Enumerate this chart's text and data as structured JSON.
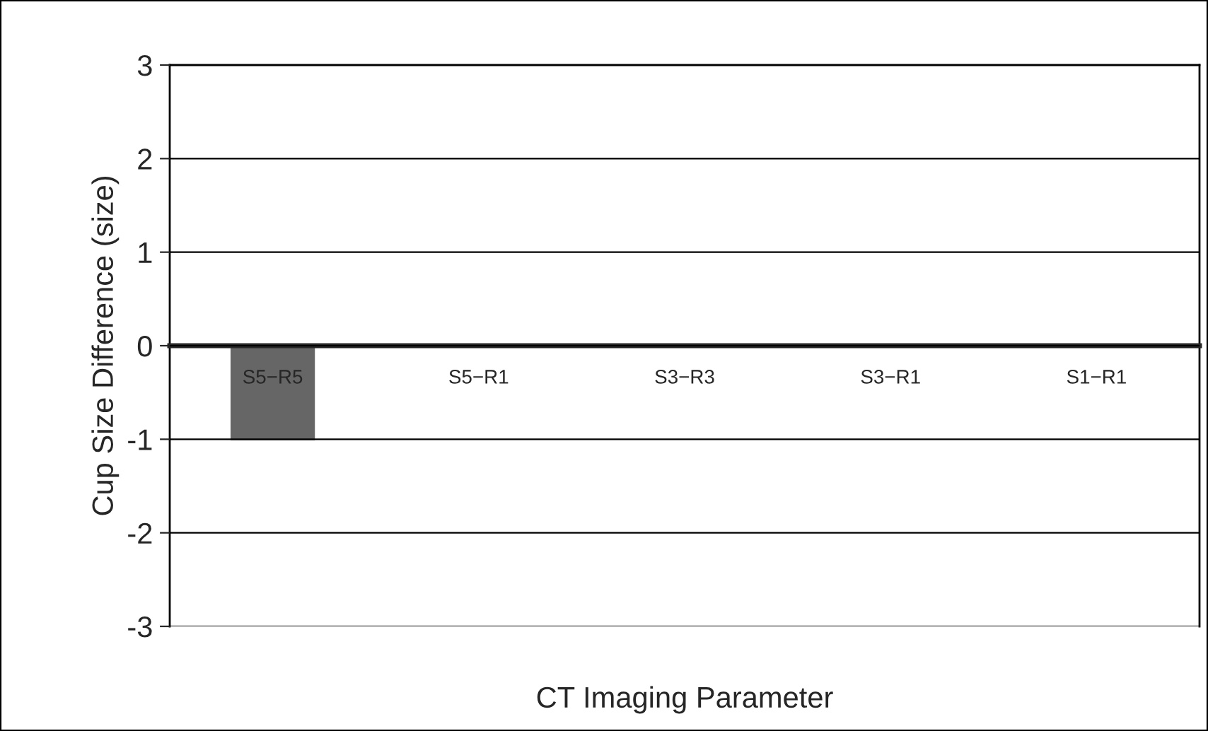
{
  "chart_data": {
    "type": "bar",
    "xlabel": "CT Imaging Parameter",
    "ylabel": "Cup Size Difference (size)",
    "categories": [
      "S5−R5",
      "S5−R1",
      "S3−R3",
      "S3−R1",
      "S1−R1"
    ],
    "values": [
      -1,
      0,
      0,
      0,
      0
    ],
    "color": "#666666",
    "ylim": [
      -3,
      3
    ],
    "yticks": [
      -3,
      -2,
      -1,
      0,
      1,
      2,
      3
    ],
    "grid": "y"
  }
}
